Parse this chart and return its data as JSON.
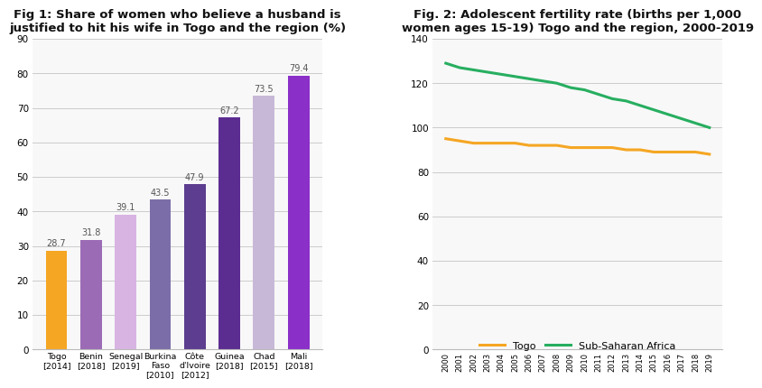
{
  "fig1": {
    "title": "Fig 1: Share of women who believe a husband is\njustified to hit his wife in Togo and the region (%)",
    "categories": [
      "Togo\n[2014]",
      "Benin\n[2018]",
      "Senegal\n[2019]",
      "Burkina\nFaso\n[2010]",
      "Côte\nd'Ivoire\n[2012]",
      "Guinea\n[2018]",
      "Chad\n[2015]",
      "Mali\n[2018]"
    ],
    "values": [
      28.7,
      31.8,
      39.1,
      43.5,
      47.9,
      67.2,
      73.5,
      79.4
    ],
    "bar_colors": [
      "#F5A623",
      "#9B6BB5",
      "#D8B4E2",
      "#7B6EA8",
      "#5C3D8F",
      "#5C2D91",
      "#C8B8D8",
      "#8B2FC9"
    ],
    "ylim": [
      0,
      90
    ],
    "yticks": [
      0,
      10,
      20,
      30,
      40,
      50,
      60,
      70,
      80,
      90
    ],
    "title_fontsize": 9.5
  },
  "fig2": {
    "title": "Fig. 2: Adolescent fertility rate (births per 1,000\nwomen ages 15-19) Togo and the region, 2000-2019",
    "years": [
      2000,
      2001,
      2002,
      2003,
      2004,
      2005,
      2006,
      2007,
      2008,
      2009,
      2010,
      2011,
      2012,
      2013,
      2014,
      2015,
      2016,
      2017,
      2018,
      2019
    ],
    "togo": [
      95,
      94,
      93,
      93,
      93,
      93,
      92,
      92,
      92,
      91,
      91,
      91,
      91,
      90,
      90,
      89,
      89,
      89,
      89,
      88
    ],
    "ssa": [
      129,
      127,
      126,
      125,
      124,
      123,
      122,
      121,
      120,
      118,
      117,
      115,
      113,
      112,
      110,
      108,
      106,
      104,
      102,
      100
    ],
    "togo_color": "#F5A623",
    "ssa_color": "#27AE60",
    "ylim": [
      0,
      140
    ],
    "yticks": [
      0,
      20,
      40,
      60,
      80,
      100,
      120,
      140
    ],
    "title_fontsize": 9.5,
    "legend_labels": [
      "Togo",
      "Sub-Saharan Africa"
    ]
  },
  "background_color": "#FFFFFF",
  "panel_bg": "#F8F8F8",
  "grid_color": "#CCCCCC"
}
